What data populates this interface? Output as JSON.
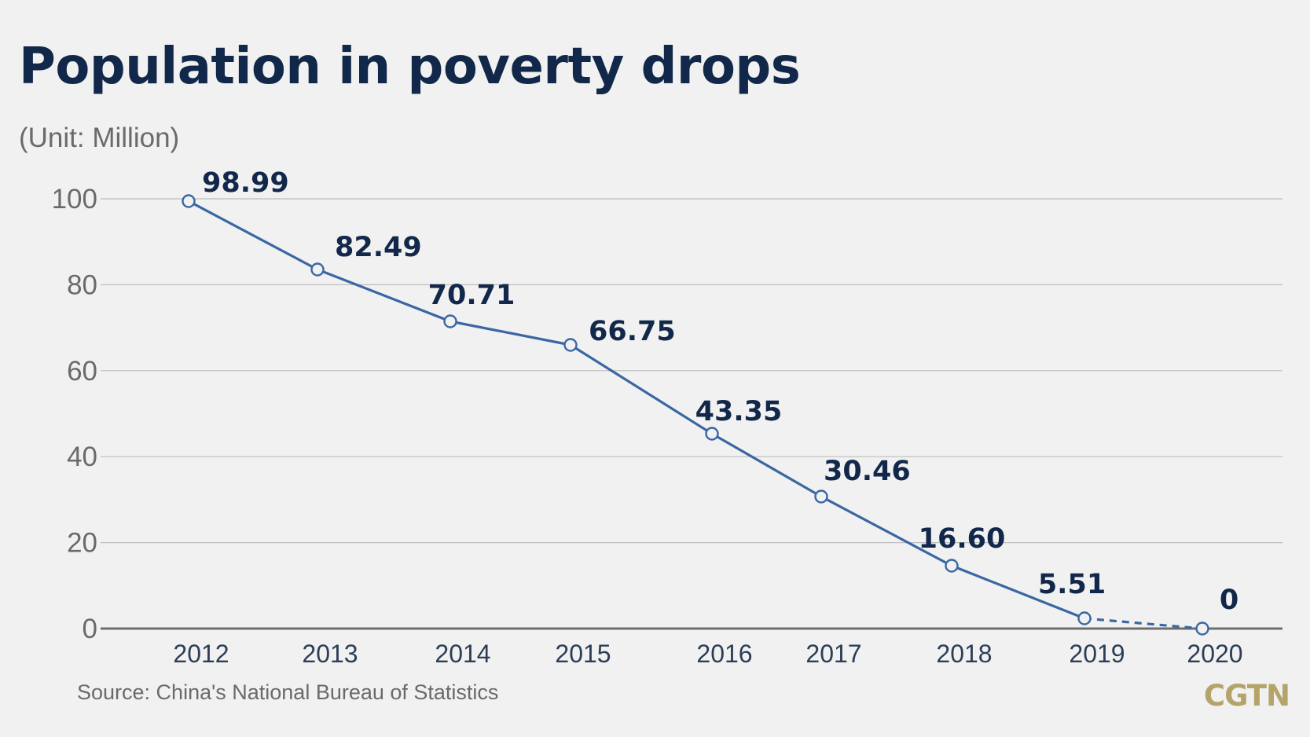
{
  "header": {
    "title": "Population in poverty drops",
    "subtitle": "(Unit: Million)"
  },
  "footer": {
    "source": "Source: China's National Bureau of Statistics",
    "brand": "CGTN"
  },
  "colors": {
    "line": "#3a67a3",
    "label": "#12284a",
    "grid": "#bdbdbd",
    "axis": "#6e6e6e",
    "brand": "#b4a46a",
    "background": "#f1f1f1"
  },
  "chart_data": {
    "type": "line",
    "title": "Population in poverty drops",
    "subtitle": "(Unit: Million)",
    "xlabel": "",
    "ylabel": "",
    "categories": [
      "2012",
      "2013",
      "2014",
      "2015",
      "2016",
      "2017",
      "2018",
      "2019",
      "2020"
    ],
    "values": [
      98.99,
      82.49,
      70.71,
      66.75,
      43.35,
      30.46,
      16.6,
      5.51,
      0
    ],
    "data_labels": [
      "98.99",
      "82.49",
      "70.71",
      "66.75",
      "43.35",
      "30.46",
      "16.60",
      "5.51",
      "0"
    ],
    "dashed_last_segment": true,
    "ylim": [
      0,
      100
    ],
    "yticks": [
      0,
      20,
      40,
      60,
      80,
      100
    ],
    "grid": true,
    "legend": "none",
    "marker": "hollow-circle"
  }
}
